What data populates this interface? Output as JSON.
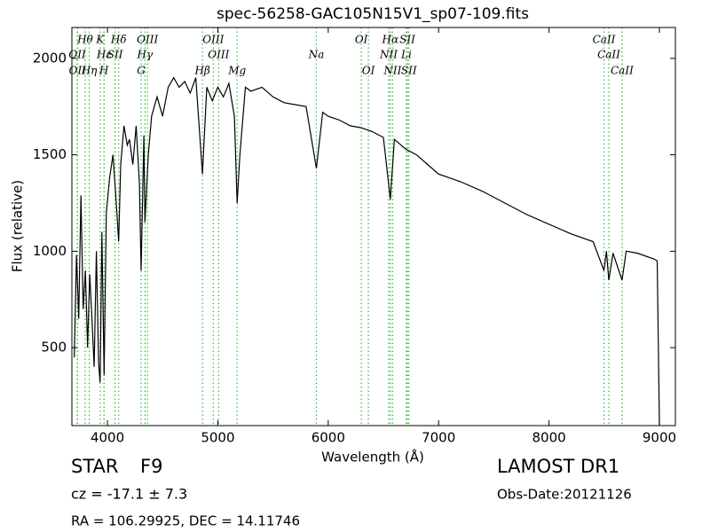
{
  "chart_data": {
    "type": "line",
    "title": "spec-56258-GAC105N15V1_sp07-109.fits",
    "x_label": "Wavelength (Å)",
    "y_label": "Flux (relative)",
    "xlim": [
      3678,
      9145
    ],
    "ylim": [
      96,
      2160
    ],
    "xticks": [
      4000,
      5000,
      6000,
      7000,
      8000,
      9000
    ],
    "yticks": [
      500,
      1000,
      1500,
      2000
    ],
    "color": "#000000",
    "line_color": "#33bb33",
    "x": [
      3700,
      3720,
      3740,
      3760,
      3780,
      3800,
      3820,
      3840,
      3860,
      3880,
      3900,
      3920,
      3934,
      3950,
      3970,
      3990,
      4020,
      4050,
      4080,
      4102,
      4120,
      4150,
      4180,
      4200,
      4230,
      4260,
      4290,
      4305,
      4330,
      4340,
      4370,
      4400,
      4450,
      4500,
      4550,
      4600,
      4650,
      4700,
      4750,
      4800,
      4861,
      4900,
      4950,
      5000,
      5050,
      5100,
      5150,
      5175,
      5200,
      5250,
      5300,
      5400,
      5500,
      5600,
      5700,
      5800,
      5893,
      5950,
      6000,
      6100,
      6200,
      6300,
      6400,
      6500,
      6563,
      6600,
      6700,
      6800,
      6900,
      7000,
      7200,
      7400,
      7600,
      7800,
      8000,
      8200,
      8400,
      8498,
      8520,
      8542,
      8580,
      8662,
      8700,
      8800,
      8950,
      8980,
      9000
    ],
    "values": [
      450,
      980,
      650,
      1290,
      700,
      900,
      500,
      880,
      650,
      400,
      1000,
      420,
      320,
      1100,
      360,
      1200,
      1380,
      1500,
      1250,
      1050,
      1450,
      1650,
      1550,
      1580,
      1450,
      1650,
      1350,
      900,
      1600,
      1150,
      1500,
      1700,
      1800,
      1700,
      1850,
      1900,
      1850,
      1880,
      1820,
      1900,
      1400,
      1850,
      1780,
      1850,
      1800,
      1870,
      1700,
      1250,
      1500,
      1850,
      1830,
      1850,
      1800,
      1770,
      1760,
      1750,
      1430,
      1720,
      1700,
      1680,
      1650,
      1640,
      1620,
      1590,
      1270,
      1580,
      1530,
      1500,
      1450,
      1400,
      1360,
      1310,
      1250,
      1190,
      1140,
      1090,
      1050,
      900,
      1000,
      850,
      990,
      850,
      1000,
      990,
      960,
      950,
      100
    ],
    "line_label_rows": [
      [
        {
          "label": "Hθ",
          "wavelength": 3798
        },
        {
          "label": "K",
          "wavelength": 3934
        },
        {
          "label": "Hδ",
          "wavelength": 4102
        },
        {
          "label": "OIII",
          "wavelength": 4363
        },
        {
          "label": "OIII",
          "wavelength": 4959
        },
        {
          "label": "OI",
          "wavelength": 6300
        },
        {
          "label": "Hα",
          "wavelength": 6563
        },
        {
          "label": "SII",
          "wavelength": 6717
        },
        {
          "label": "CaII",
          "wavelength": 8498
        }
      ],
      [
        {
          "label": "OII",
          "wavelength": 3727
        },
        {
          "label": "Hε",
          "wavelength": 3970
        },
        {
          "label": "SII",
          "wavelength": 4069
        },
        {
          "label": "Hγ",
          "wavelength": 4340
        },
        {
          "label": "OIII",
          "wavelength": 5007
        },
        {
          "label": "Na",
          "wavelength": 5893
        },
        {
          "label": "NII",
          "wavelength": 6548
        },
        {
          "label": "Li",
          "wavelength": 6708
        },
        {
          "label": "CaII",
          "wavelength": 8542
        }
      ],
      [
        {
          "label": "OII",
          "wavelength": 3729
        },
        {
          "label": "Hη",
          "wavelength": 3835
        },
        {
          "label": "H",
          "wavelength": 3968
        },
        {
          "label": "G",
          "wavelength": 4305
        },
        {
          "label": "Hβ",
          "wavelength": 4861
        },
        {
          "label": "Mg",
          "wavelength": 5175
        },
        {
          "label": "OI",
          "wavelength": 6364
        },
        {
          "label": "NII",
          "wavelength": 6583
        },
        {
          "label": "SII",
          "wavelength": 6731
        },
        {
          "label": "CaII",
          "wavelength": 8662
        }
      ]
    ]
  },
  "footer": {
    "class": "STAR",
    "subclass": "F9",
    "cz": "cz = -17.1 ± 7.3",
    "coords": "RA = 106.29925, DEC = 14.11746",
    "survey": "LAMOST DR1",
    "obs_date": "Obs-Date:20121126"
  }
}
